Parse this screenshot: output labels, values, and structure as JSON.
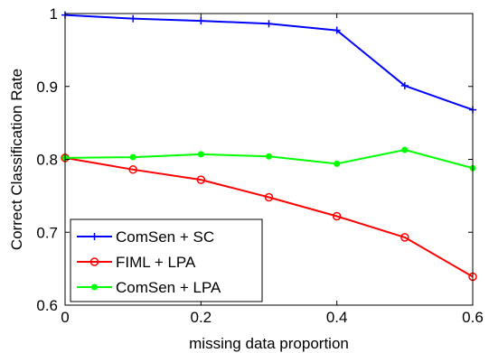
{
  "chart_data": {
    "type": "line",
    "xlabel": "missing data proportion",
    "ylabel": "Correct Classification Rate",
    "xlim": [
      0,
      0.6
    ],
    "ylim": [
      0.6,
      1.0
    ],
    "x_ticks": [
      0,
      0.2,
      0.4,
      0.6
    ],
    "x_tick_labels": [
      "0",
      "0.2",
      "0.4",
      "0.6"
    ],
    "y_ticks": [
      0.6,
      0.7,
      0.8,
      0.9,
      1.0
    ],
    "y_tick_labels": [
      "0.6",
      "0.7",
      "0.8",
      "0.9",
      "1"
    ],
    "grid": false,
    "legend_position": "bottom-left",
    "x": [
      0,
      0.1,
      0.2,
      0.3,
      0.4,
      0.5,
      0.6
    ],
    "series": [
      {
        "name": "ComSen + SC",
        "color": "#0000ff",
        "marker": "plus",
        "values": [
          0.998,
          0.993,
          0.99,
          0.986,
          0.977,
          0.901,
          0.868
        ]
      },
      {
        "name": "FIML + LPA",
        "color": "#ff0000",
        "marker": "circle",
        "values": [
          0.802,
          0.786,
          0.772,
          0.748,
          0.722,
          0.693,
          0.639
        ]
      },
      {
        "name": "ComSen + LPA",
        "color": "#00ff00",
        "marker": "dot",
        "values": [
          0.802,
          0.803,
          0.807,
          0.804,
          0.794,
          0.813,
          0.788
        ]
      }
    ]
  }
}
